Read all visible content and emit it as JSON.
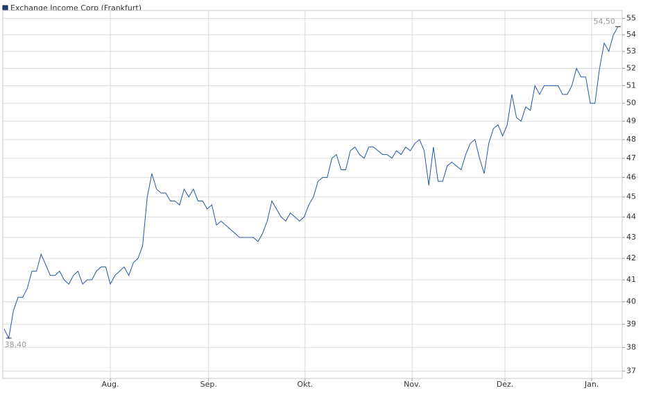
{
  "chart_data": {
    "type": "line",
    "legend": "Exchange Income Corp (Frankfurt)",
    "legend_position": "top-left",
    "log_scale": true,
    "grid": true,
    "x": [
      0,
      1,
      2,
      3,
      4,
      5,
      6,
      7,
      8,
      9,
      10,
      11,
      12,
      13,
      14,
      15,
      16,
      17,
      18,
      19,
      20,
      21,
      22,
      23,
      24,
      25,
      26,
      27,
      28,
      29,
      30,
      31,
      32,
      33,
      34,
      35,
      36,
      37,
      38,
      39,
      40,
      41,
      42,
      43,
      44,
      45,
      46,
      47,
      48,
      49,
      50,
      51,
      52,
      53,
      54,
      55,
      56,
      57,
      58,
      59,
      60,
      61,
      62,
      63,
      64,
      65,
      66,
      67,
      68,
      69,
      70,
      71,
      72,
      73,
      74,
      75,
      76,
      77,
      78,
      79,
      80,
      81,
      82,
      83,
      84,
      85,
      86,
      87,
      88,
      89,
      90,
      91,
      92,
      93,
      94,
      95,
      96,
      97,
      98,
      99,
      100,
      101,
      102,
      103,
      104,
      105,
      106,
      107,
      108,
      109,
      110,
      111,
      112,
      113,
      114,
      115,
      116,
      117,
      118,
      119,
      120,
      121,
      122,
      123,
      124,
      125,
      126,
      127,
      128,
      129,
      130,
      131,
      132,
      133
    ],
    "series": [
      {
        "name": "Exchange Income Corp (Frankfurt)",
        "color": "#2456a4",
        "values": [
          38.8,
          38.4,
          39.6,
          40.2,
          40.2,
          40.6,
          41.4,
          41.4,
          42.2,
          41.7,
          41.2,
          41.2,
          41.4,
          41.0,
          40.8,
          41.2,
          41.4,
          40.8,
          41.0,
          41.0,
          41.4,
          41.6,
          41.6,
          40.8,
          41.2,
          41.4,
          41.6,
          41.2,
          41.8,
          42.0,
          42.6,
          45.0,
          46.2,
          45.4,
          45.2,
          45.2,
          44.8,
          44.8,
          44.6,
          45.4,
          45.0,
          45.4,
          44.8,
          44.8,
          44.4,
          44.6,
          43.6,
          43.8,
          43.6,
          43.4,
          43.2,
          43.0,
          43.0,
          43.0,
          43.0,
          42.8,
          43.2,
          43.8,
          44.8,
          44.4,
          44.0,
          43.8,
          44.2,
          44.0,
          43.8,
          44.0,
          44.6,
          45.0,
          45.8,
          46.0,
          46.0,
          47.0,
          47.2,
          46.4,
          46.4,
          47.4,
          47.6,
          47.2,
          47.0,
          47.6,
          47.6,
          47.4,
          47.2,
          47.2,
          47.0,
          47.4,
          47.2,
          47.6,
          47.4,
          47.8,
          48.0,
          47.4,
          45.6,
          47.6,
          45.8,
          45.8,
          46.6,
          46.8,
          46.6,
          46.4,
          47.2,
          47.8,
          48.0,
          47.0,
          46.2,
          47.8,
          48.6,
          48.8,
          48.2,
          48.8,
          50.5,
          49.2,
          49.0,
          49.8,
          49.6,
          51.0,
          50.5,
          51.0,
          51.0,
          51.0,
          51.0,
          50.5,
          50.5,
          51.0,
          52.0,
          51.5,
          51.5,
          50.0,
          50.0,
          52.0,
          53.5,
          53.0,
          54.0,
          54.5
        ]
      }
    ],
    "annotations": [
      {
        "x": 1,
        "value": 38.4,
        "label": "38,40"
      },
      {
        "x": 133,
        "value": 54.5,
        "label": "54,50"
      }
    ],
    "xlim": [
      -0.3,
      133.9
    ],
    "xticks": [
      {
        "value": 23,
        "label": "Aug."
      },
      {
        "value": 44.3,
        "label": "Sep."
      },
      {
        "value": 65.2,
        "label": "Okt."
      },
      {
        "value": 88.4,
        "label": "Nov."
      },
      {
        "value": 108.5,
        "label": "Dez."
      },
      {
        "value": 127.3,
        "label": "Jan."
      }
    ],
    "ylim": [
      36.7,
      55.5
    ],
    "yticks": [
      37,
      38,
      39,
      40,
      41,
      42,
      43,
      44,
      45,
      46,
      47,
      48,
      49,
      50,
      51,
      52,
      53,
      54,
      55
    ]
  }
}
